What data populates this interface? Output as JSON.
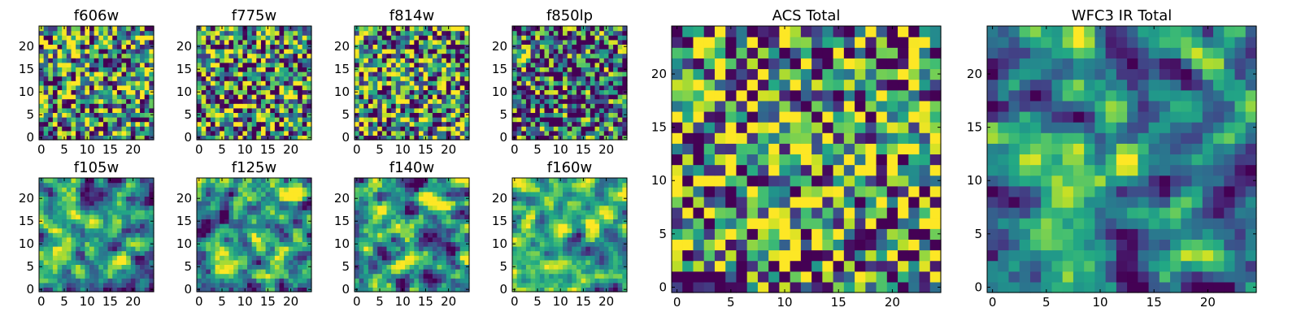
{
  "chart_data": [
    {
      "type": "heatmap",
      "title": "f606w",
      "grid_size": 25,
      "xticks": [
        0,
        5,
        10,
        15,
        20
      ],
      "yticks": [
        0,
        5,
        10,
        15,
        20
      ],
      "xlim": [
        -0.5,
        24.5
      ],
      "ylim": [
        -0.5,
        24.5
      ],
      "colormap": "viridis",
      "seed": 11,
      "smooth": 0,
      "hotspots": []
    },
    {
      "type": "heatmap",
      "title": "f775w",
      "grid_size": 25,
      "xticks": [
        0,
        5,
        10,
        15,
        20
      ],
      "yticks": [
        0,
        5,
        10,
        15,
        20
      ],
      "xlim": [
        -0.5,
        24.5
      ],
      "ylim": [
        -0.5,
        24.5
      ],
      "colormap": "viridis",
      "seed": 23,
      "smooth": 0,
      "hotspots": []
    },
    {
      "type": "heatmap",
      "title": "f814w",
      "grid_size": 25,
      "xticks": [
        0,
        5,
        10,
        15,
        20
      ],
      "yticks": [
        0,
        5,
        10,
        15,
        20
      ],
      "xlim": [
        -0.5,
        24.5
      ],
      "ylim": [
        -0.5,
        24.5
      ],
      "colormap": "viridis",
      "seed": 37,
      "smooth": 0,
      "hotspots": [
        {
          "x": 10,
          "y": 12,
          "w": 0.3
        }
      ]
    },
    {
      "type": "heatmap",
      "title": "f850lp",
      "grid_size": 25,
      "xticks": [
        0,
        5,
        10,
        15,
        20
      ],
      "yticks": [
        0,
        5,
        10,
        15,
        20
      ],
      "xlim": [
        -0.5,
        24.5
      ],
      "ylim": [
        -0.5,
        24.5
      ],
      "colormap": "viridis",
      "seed": 41,
      "smooth": 0,
      "bias": -0.18,
      "hotspots": [
        {
          "x": 1,
          "y": 18,
          "w": 0.6
        }
      ]
    },
    {
      "type": "heatmap",
      "title": "f105w",
      "grid_size": 25,
      "xticks": [
        0,
        5,
        10,
        15,
        20
      ],
      "yticks": [
        0,
        5,
        10,
        15,
        20
      ],
      "xlim": [
        -0.5,
        24.5
      ],
      "ylim": [
        -0.5,
        24.5
      ],
      "colormap": "viridis",
      "seed": 53,
      "smooth": 1,
      "hotspots": [
        {
          "x": 21,
          "y": 11,
          "w": 0.6
        }
      ]
    },
    {
      "type": "heatmap",
      "title": "f125w",
      "grid_size": 25,
      "xticks": [
        0,
        5,
        10,
        15,
        20
      ],
      "yticks": [
        0,
        5,
        10,
        15,
        20
      ],
      "xlim": [
        -0.5,
        24.5
      ],
      "ylim": [
        -0.5,
        24.5
      ],
      "colormap": "viridis",
      "seed": 67,
      "smooth": 1,
      "hotspots": [
        {
          "x": 20,
          "y": 21,
          "w": 0.5
        }
      ]
    },
    {
      "type": "heatmap",
      "title": "f140w",
      "grid_size": 25,
      "xticks": [
        0,
        5,
        10,
        15,
        20
      ],
      "yticks": [
        0,
        5,
        10,
        15,
        20
      ],
      "xlim": [
        -0.5,
        24.5
      ],
      "ylim": [
        -0.5,
        24.5
      ],
      "colormap": "viridis",
      "seed": 71,
      "smooth": 1,
      "hotspots": [
        {
          "x": 16,
          "y": 20,
          "w": 0.5
        }
      ]
    },
    {
      "type": "heatmap",
      "title": "f160w",
      "grid_size": 25,
      "xticks": [
        0,
        5,
        10,
        15,
        20
      ],
      "yticks": [
        0,
        5,
        10,
        15,
        20
      ],
      "xlim": [
        -0.5,
        24.5
      ],
      "ylim": [
        -0.5,
        24.5
      ],
      "colormap": "viridis",
      "seed": 83,
      "smooth": 1,
      "hotspots": [
        {
          "x": 11,
          "y": 13,
          "w": 0.45
        },
        {
          "x": 17,
          "y": 14,
          "w": 0.45
        }
      ]
    },
    {
      "type": "heatmap",
      "title": "ACS Total",
      "grid_size": 25,
      "xticks": [
        0,
        5,
        10,
        15,
        20
      ],
      "yticks": [
        0,
        5,
        10,
        15,
        20
      ],
      "xlim": [
        -0.5,
        24.5
      ],
      "ylim": [
        -0.5,
        24.5
      ],
      "colormap": "viridis",
      "seed": 97,
      "smooth": 0,
      "hotspots": [
        {
          "x": 1,
          "y": 18,
          "w": 0.7
        },
        {
          "x": 12,
          "y": 13,
          "w": 0.35
        }
      ]
    },
    {
      "type": "heatmap",
      "title": "WFC3 IR Total",
      "grid_size": 25,
      "xticks": [
        0,
        5,
        10,
        15,
        20
      ],
      "yticks": [
        0,
        5,
        10,
        15,
        20
      ],
      "xlim": [
        -0.5,
        24.5
      ],
      "ylim": [
        -0.5,
        24.5
      ],
      "colormap": "viridis",
      "seed": 101,
      "smooth": 1,
      "hotspots": [
        {
          "x": 11,
          "y": 12,
          "w": 0.4
        },
        {
          "x": 13,
          "y": 12,
          "w": 0.55
        }
      ]
    }
  ]
}
